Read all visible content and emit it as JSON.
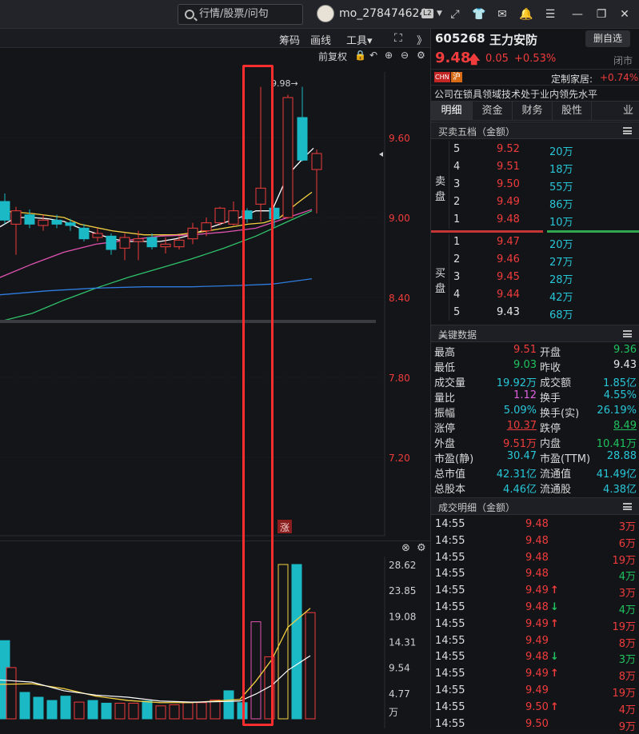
{
  "topbar": {
    "search_placeholder": "行情/股票/问句",
    "username": "mo_278474624",
    "level_badge": "L2",
    "icons": [
      "screen-icon",
      "shirt-icon",
      "mail-icon",
      "bell-icon",
      "menu-icon",
      "minimize-icon",
      "restore-icon",
      "close-icon"
    ]
  },
  "chart_toolbar": {
    "items": [
      "筹码",
      "画线",
      "工具▾"
    ],
    "fullscreen_icon": "fullscreen-icon",
    "collapse_label": "》"
  },
  "chart_subtoolbar": {
    "adjust_label": "前复权"
  },
  "chart_data": {
    "type": "candlestick",
    "y_ticks": [
      "9.60",
      "9.00",
      "8.40",
      "7.80",
      "7.20"
    ],
    "y_tick_values": [
      9.6,
      9.0,
      8.4,
      7.8,
      7.2
    ],
    "high_marker": "9.98→",
    "limit_up_tag": "涨",
    "volume_ticks": [
      "28.62",
      "23.85",
      "19.08",
      "14.31",
      "9.54",
      "4.77",
      "万"
    ],
    "volume_tick_values": [
      28.62,
      23.85,
      19.08,
      14.31,
      9.54,
      4.77
    ],
    "colors": {
      "up": "#f03c3c",
      "down": "#1bb9c5",
      "ma5": "#ffffff",
      "ma10": "#f5d142",
      "ma20": "#e052b0",
      "ma30": "#2fc36a",
      "ma60": "#2f7de0",
      "highlight": "#ff2a2a"
    }
  },
  "stock": {
    "code": "605268",
    "name": "王力安防",
    "watch_button": "删自选",
    "price": "9.48",
    "change": "0.05",
    "change_pct": "+0.53%",
    "status": "闭市",
    "tag_cn": "CHN",
    "tag_sh": "沪",
    "sector_label": "定制家居:",
    "sector_pct": "+0.74%",
    "desc": "公司在锁具领域技术处于业内领先水平"
  },
  "tabs": [
    "明细",
    "资金",
    "财务",
    "股性",
    "业"
  ],
  "orderbook": {
    "title": "买卖五档（金额）",
    "sell_label": [
      "卖",
      "盘"
    ],
    "buy_label": [
      "买",
      "盘"
    ],
    "sell": [
      {
        "lvl": "5",
        "price": "9.52",
        "vol": "20万"
      },
      {
        "lvl": "4",
        "price": "9.51",
        "vol": "18万"
      },
      {
        "lvl": "3",
        "price": "9.50",
        "vol": "55万"
      },
      {
        "lvl": "2",
        "price": "9.49",
        "vol": "86万"
      },
      {
        "lvl": "1",
        "price": "9.48",
        "vol": "10万"
      }
    ],
    "buy": [
      {
        "lvl": "1",
        "price": "9.47",
        "vol": "20万"
      },
      {
        "lvl": "2",
        "price": "9.46",
        "vol": "27万"
      },
      {
        "lvl": "3",
        "price": "9.45",
        "vol": "28万"
      },
      {
        "lvl": "4",
        "price": "9.44",
        "vol": "42万"
      },
      {
        "lvl": "5",
        "price": "9.43",
        "vol": "68万"
      }
    ]
  },
  "keydata": {
    "title": "关键数据",
    "rows": [
      [
        {
          "k": "最高",
          "v": "9.51",
          "c": "red"
        },
        {
          "k": "开盘",
          "v": "9.36",
          "c": "green"
        }
      ],
      [
        {
          "k": "最低",
          "v": "9.03",
          "c": "green"
        },
        {
          "k": "昨收",
          "v": "9.43",
          "c": "white"
        }
      ],
      [
        {
          "k": "成交量",
          "v": "19.92万",
          "c": "cyan"
        },
        {
          "k": "成交额",
          "v": "1.85亿",
          "c": "cyan"
        }
      ],
      [
        {
          "k": "量比",
          "v": "1.12",
          "c": "pink"
        },
        {
          "k": "换手",
          "v": "4.55%",
          "c": "cyan"
        }
      ],
      [
        {
          "k": "振幅",
          "v": "5.09%",
          "c": "cyan"
        },
        {
          "k": "换手(实)",
          "v": "26.19%",
          "c": "cyan"
        }
      ],
      [
        {
          "k": "涨停",
          "v": "10.37",
          "c": "red"
        },
        {
          "k": "跌停",
          "v": "8.49",
          "c": "green"
        }
      ],
      [
        {
          "k": "外盘",
          "v": "9.51万",
          "c": "red"
        },
        {
          "k": "内盘",
          "v": "10.41万",
          "c": "green"
        }
      ],
      [
        {
          "k": "市盈(静)",
          "v": "30.47",
          "c": "cyan"
        },
        {
          "k": "市盈(TTM)",
          "v": "28.88",
          "c": "cyan"
        }
      ],
      [
        {
          "k": "总市值",
          "v": "42.31亿",
          "c": "cyan"
        },
        {
          "k": "流通值",
          "v": "41.49亿",
          "c": "cyan"
        }
      ],
      [
        {
          "k": "总股本",
          "v": "4.46亿",
          "c": "cyan"
        },
        {
          "k": "流通股",
          "v": "4.38亿",
          "c": "cyan"
        }
      ]
    ]
  },
  "trades": {
    "title": "成交明细（金额）",
    "rows": [
      {
        "t": "14:55",
        "p": "9.48",
        "a": "",
        "v": "3万"
      },
      {
        "t": "14:55",
        "p": "9.48",
        "a": "",
        "v": "6万"
      },
      {
        "t": "14:55",
        "p": "9.48",
        "a": "",
        "v": "19万"
      },
      {
        "t": "14:55",
        "p": "9.48",
        "a": "",
        "v": "4万",
        "vc": "green"
      },
      {
        "t": "14:55",
        "p": "9.49",
        "a": "↑",
        "v": "3万"
      },
      {
        "t": "14:55",
        "p": "9.48",
        "a": "↓",
        "v": "4万",
        "vc": "green"
      },
      {
        "t": "14:55",
        "p": "9.49",
        "a": "↑",
        "v": "19万"
      },
      {
        "t": "14:55",
        "p": "9.49",
        "a": "",
        "v": "8万"
      },
      {
        "t": "14:55",
        "p": "9.48",
        "a": "↓",
        "v": "3万",
        "vc": "green"
      },
      {
        "t": "14:55",
        "p": "9.49",
        "a": "↑",
        "v": "8万"
      },
      {
        "t": "14:55",
        "p": "9.49",
        "a": "",
        "v": "19万"
      },
      {
        "t": "14:55",
        "p": "9.50",
        "a": "↑",
        "v": "4万"
      },
      {
        "t": "14:55",
        "p": "9.50",
        "a": "",
        "v": "9万"
      }
    ]
  }
}
